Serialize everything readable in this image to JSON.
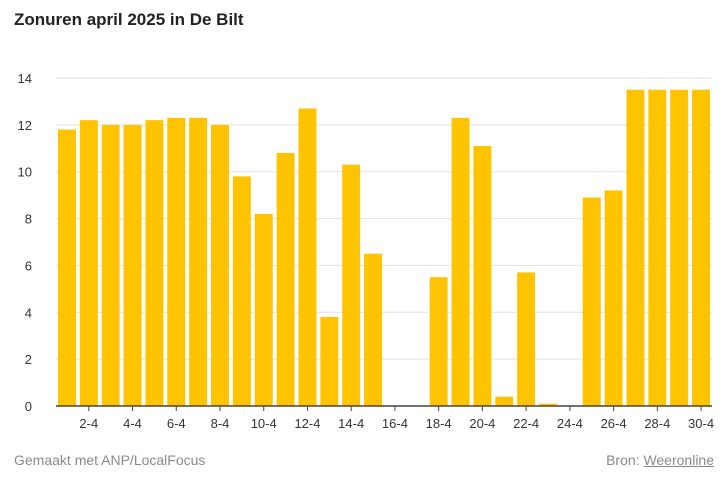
{
  "chart_data": {
    "type": "bar",
    "title": "Zonuren april 2025 in De Bilt",
    "xlabel": "",
    "ylabel": "",
    "ylim": [
      0,
      14
    ],
    "yticks": [
      0,
      2,
      4,
      6,
      8,
      10,
      12,
      14
    ],
    "grid": true,
    "categories": [
      "1-4",
      "2-4",
      "3-4",
      "4-4",
      "5-4",
      "6-4",
      "7-4",
      "8-4",
      "9-4",
      "10-4",
      "11-4",
      "12-4",
      "13-4",
      "14-4",
      "15-4",
      "16-4",
      "17-4",
      "18-4",
      "19-4",
      "20-4",
      "21-4",
      "22-4",
      "23-4",
      "24-4",
      "25-4",
      "26-4",
      "27-4",
      "28-4",
      "29-4",
      "30-4"
    ],
    "tick_labels": [
      "2-4",
      "4-4",
      "6-4",
      "8-4",
      "10-4",
      "12-4",
      "14-4",
      "16-4",
      "18-4",
      "20-4",
      "22-4",
      "24-4",
      "26-4",
      "28-4",
      "30-4"
    ],
    "values": [
      11.8,
      12.2,
      12.0,
      12.0,
      12.2,
      12.3,
      12.3,
      12.0,
      9.8,
      8.2,
      10.8,
      12.7,
      3.8,
      10.3,
      6.5,
      0,
      0,
      5.5,
      12.3,
      11.1,
      0.4,
      5.7,
      0.1,
      0,
      8.9,
      9.2,
      13.5,
      13.5,
      13.5,
      13.5
    ],
    "bar_color": "#ffc300"
  },
  "footer": {
    "credit": "Gemaakt met ANP/LocalFocus",
    "source_label": "Bron:",
    "source_link": "Weeronline"
  }
}
